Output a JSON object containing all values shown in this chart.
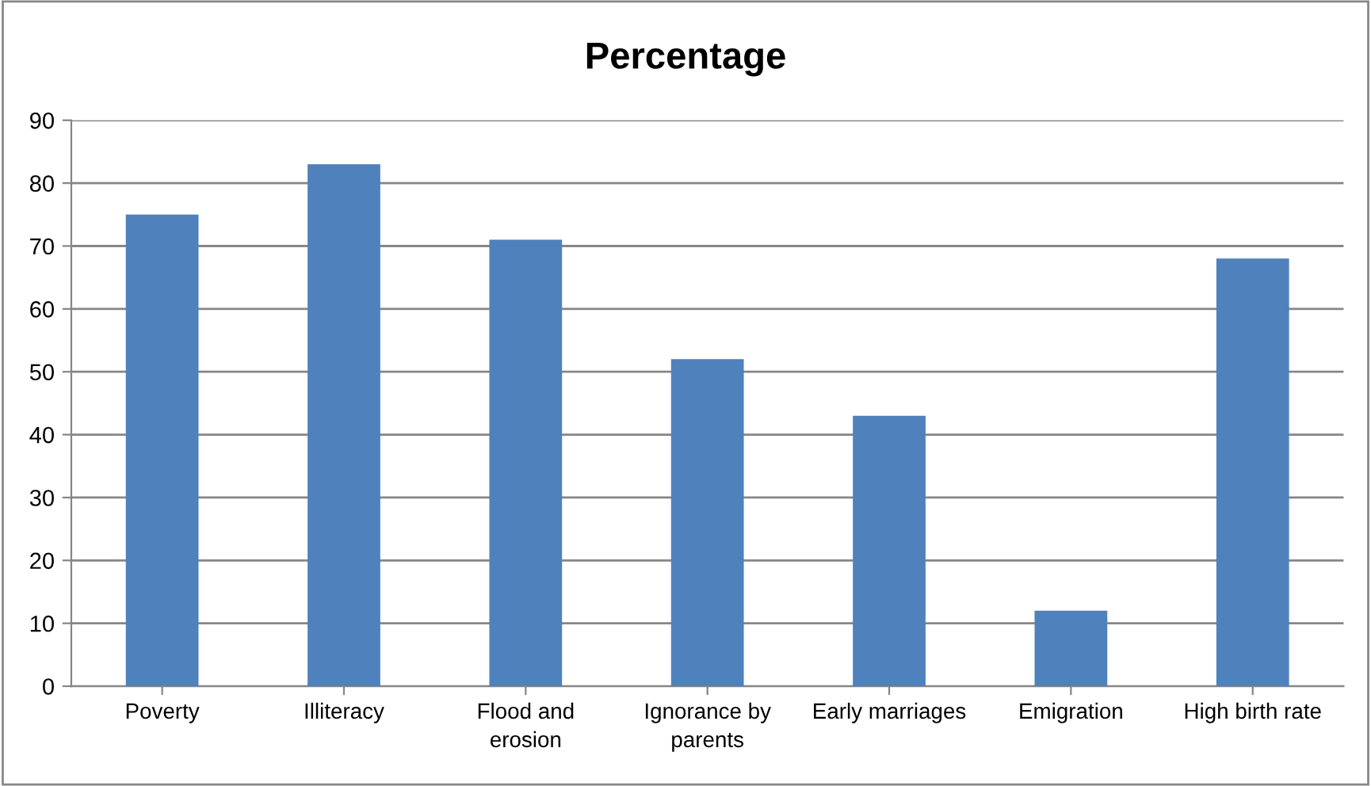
{
  "chart_data": {
    "type": "bar",
    "title": "Percentage",
    "categories": [
      "Poverty",
      "Illiteracy",
      "Flood and\nerosion",
      "Ignorance by\nparents",
      "Early marriages",
      "Emigration",
      "High birth rate"
    ],
    "values": [
      75,
      83,
      71,
      52,
      43,
      12,
      68
    ],
    "color": "#4f81bd",
    "ylim": [
      0,
      90
    ],
    "yticks": [
      0,
      10,
      20,
      30,
      40,
      50,
      60,
      70,
      80,
      90
    ],
    "grid": "y",
    "legend": false
  }
}
